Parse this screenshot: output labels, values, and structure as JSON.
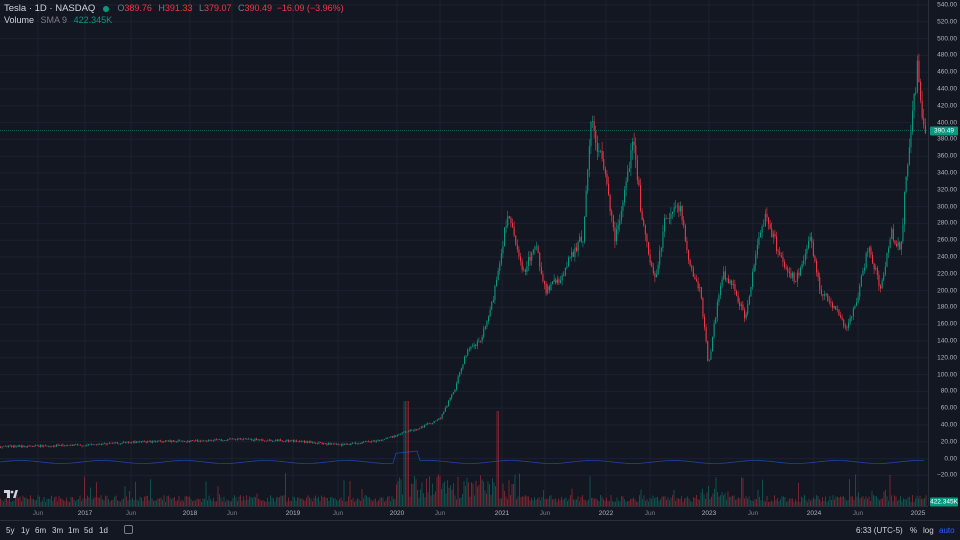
{
  "header": {
    "symbol": "Tesla · 1D · NASDAQ",
    "ohlc": {
      "o_label": "O",
      "o_value": "389.76",
      "h_label": "H",
      "h_value": "391.33",
      "l_label": "L",
      "l_value": "379.07",
      "c_label": "C",
      "c_value": "390.49",
      "change": "−16.09 (−3.96%)"
    },
    "volume_label": "Volume",
    "volume_ma": "SMA 9",
    "volume_value": "422.345K"
  },
  "price_axis": {
    "ticks": [
      "540.00",
      "520.00",
      "500.00",
      "480.00",
      "460.00",
      "440.00",
      "420.00",
      "400.00",
      "380.00",
      "360.00",
      "340.00",
      "320.00",
      "300.00",
      "280.00",
      "260.00",
      "240.00",
      "220.00",
      "200.00",
      "180.00",
      "160.00",
      "140.00",
      "120.00",
      "100.00",
      "80.00",
      "60.00",
      "40.00",
      "20.00",
      "0.00",
      "−20.00"
    ],
    "last_price_tag": "390.49",
    "volume_tag": "422.345K"
  },
  "time_axis": {
    "ticks": [
      {
        "label": "Jun",
        "minor": true
      },
      {
        "label": "2017",
        "minor": false
      },
      {
        "label": "Jun",
        "minor": true
      },
      {
        "label": "2018",
        "minor": false
      },
      {
        "label": "Jun",
        "minor": true
      },
      {
        "label": "2019",
        "minor": false
      },
      {
        "label": "Jun",
        "minor": true
      },
      {
        "label": "2020",
        "minor": false
      },
      {
        "label": "Jun",
        "minor": true
      },
      {
        "label": "2021",
        "minor": false
      },
      {
        "label": "Jun",
        "minor": true
      },
      {
        "label": "2022",
        "minor": false
      },
      {
        "label": "Jun",
        "minor": true
      },
      {
        "label": "2023",
        "minor": false
      },
      {
        "label": "Jun",
        "minor": true
      },
      {
        "label": "2024",
        "minor": false
      },
      {
        "label": "Jun",
        "minor": true
      },
      {
        "label": "2025",
        "minor": false
      }
    ]
  },
  "toolbar": {
    "ranges": [
      "5y",
      "1y",
      "6m",
      "3m",
      "1m",
      "5d",
      "1d"
    ],
    "time": "6:33 (UTC-5)",
    "percent": "%",
    "log": "log",
    "auto": "auto"
  },
  "colors": {
    "background": "#131722",
    "up": "#089981",
    "down": "#f23645",
    "grid": "#1e2230",
    "volume_ma": "#2962ff"
  },
  "chart_data": {
    "type": "candlestick",
    "ylim": [
      -25,
      540
    ],
    "series": [
      {
        "name": "Tesla",
        "x": [
          "2016-06",
          "2016-09",
          "2017-01",
          "2017-06",
          "2018-01",
          "2018-06",
          "2019-01",
          "2019-06",
          "2020-01",
          "2020-03",
          "2020-06",
          "2020-09",
          "2020-12",
          "2021-01",
          "2021-03",
          "2021-06",
          "2021-09",
          "2021-11",
          "2022-01",
          "2022-03",
          "2022-04",
          "2022-06",
          "2022-09",
          "2022-11",
          "2023-01",
          "2023-03",
          "2023-06",
          "2023-07",
          "2023-09",
          "2023-11",
          "2024-01",
          "2024-04",
          "2024-06",
          "2024-08",
          "2024-10",
          "2024-11",
          "2024-12",
          "2025-01"
        ],
        "values": [
          14,
          15,
          16,
          22,
          21,
          23,
          21,
          15,
          28,
          30,
          60,
          130,
          235,
          290,
          200,
          225,
          260,
          400,
          350,
          300,
          340,
          230,
          300,
          185,
          110,
          200,
          270,
          290,
          250,
          240,
          190,
          150,
          180,
          210,
          220,
          330,
          450,
          390
        ]
      }
    ]
  }
}
